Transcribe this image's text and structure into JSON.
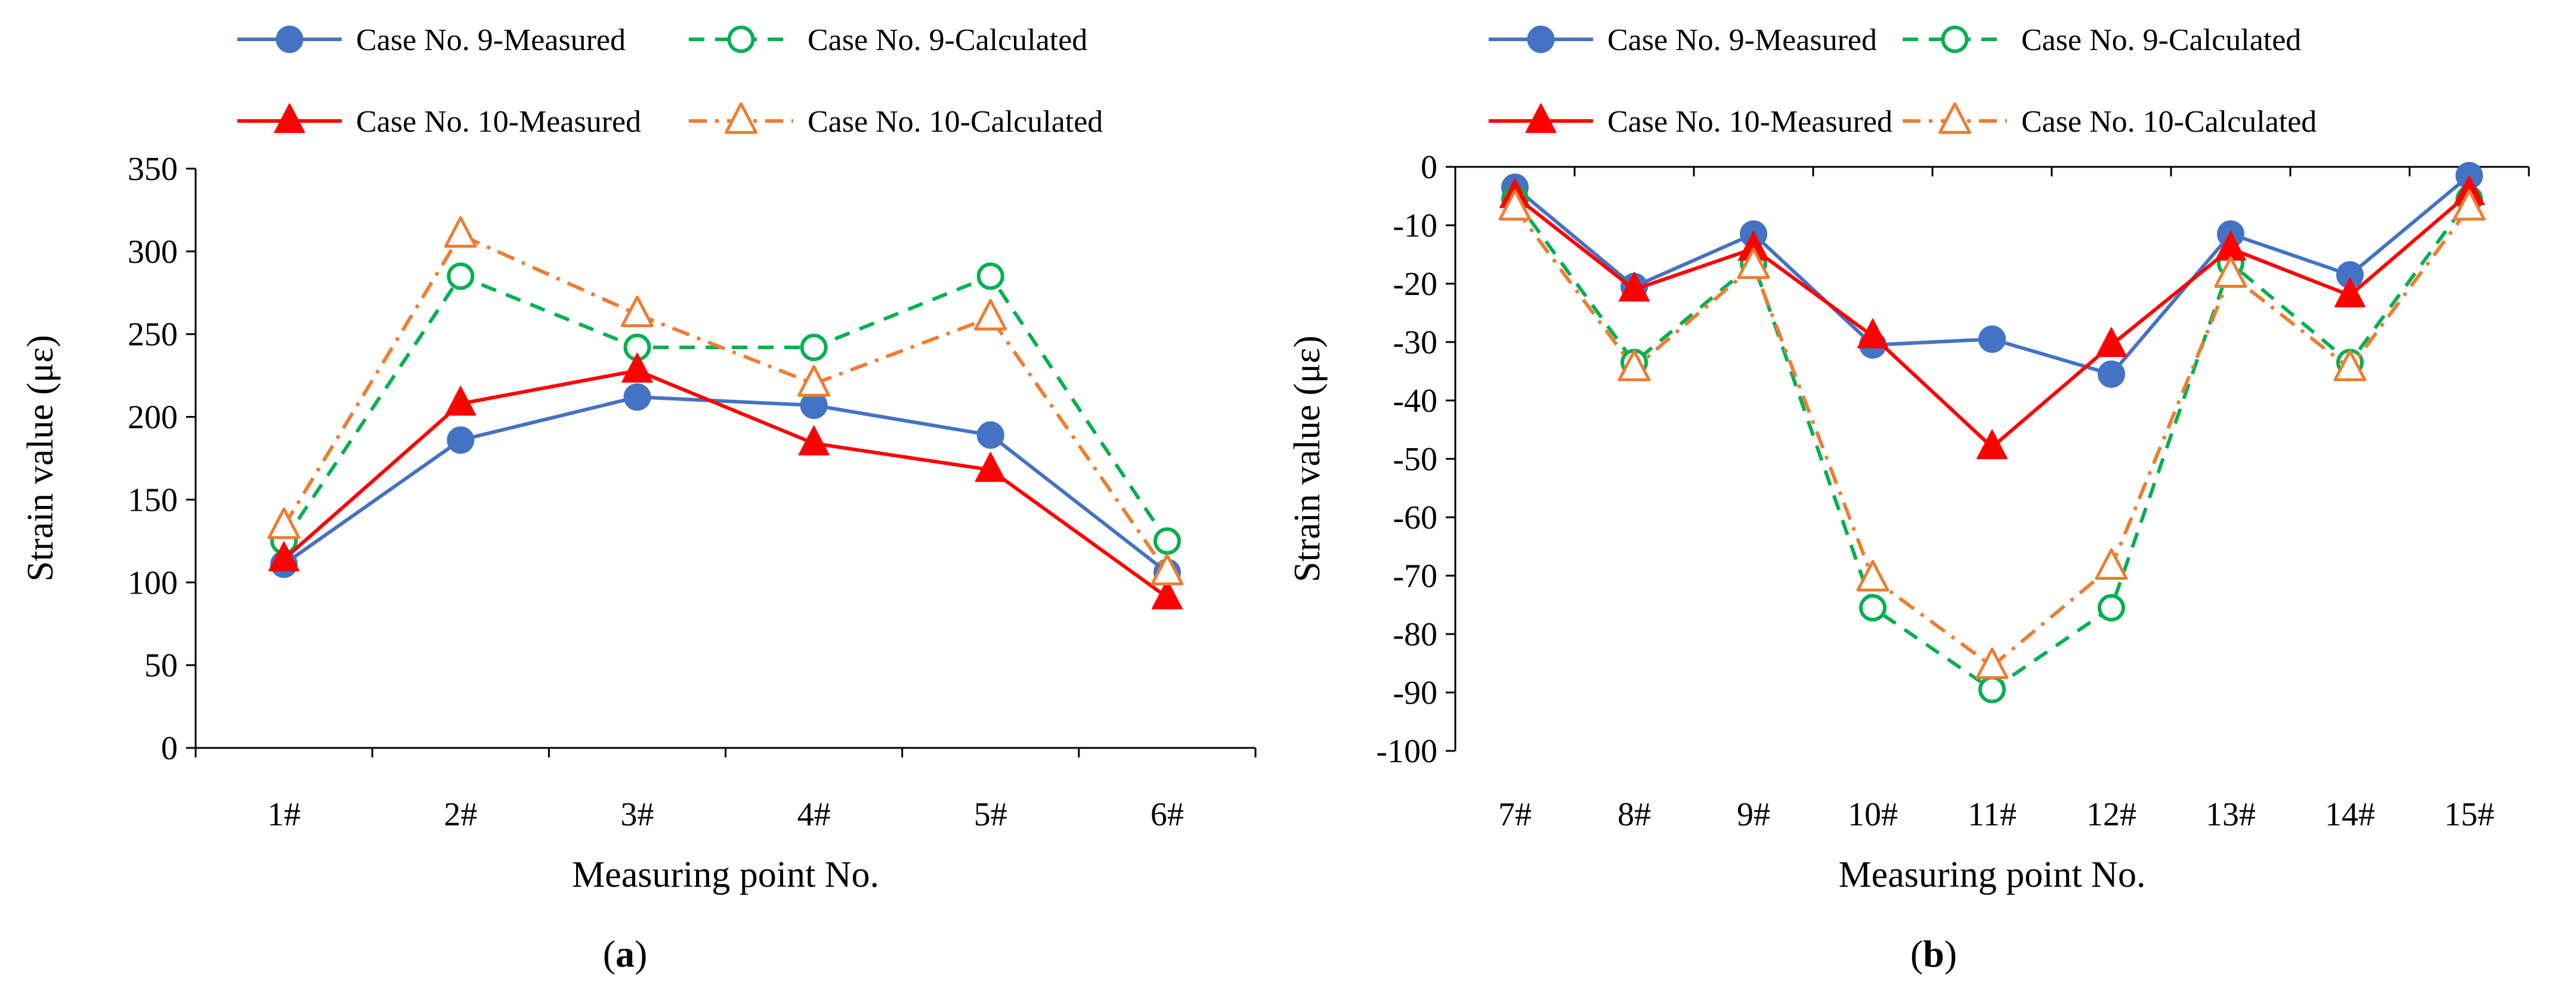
{
  "chart_data": [
    {
      "type": "line",
      "caption": "(a)",
      "caption_letter": "a",
      "xlabel": "Measuring point No.",
      "ylabel": "Strain value (με)",
      "categories": [
        "1#",
        "2#",
        "3#",
        "4#",
        "5#",
        "6#"
      ],
      "ylim": [
        0,
        350
      ],
      "yticks": [
        0,
        50,
        100,
        150,
        200,
        250,
        300,
        350
      ],
      "legend_position": "top",
      "grid": false,
      "series": [
        {
          "name": "Case No. 9-Measured",
          "values": [
            111,
            186,
            212,
            207,
            189,
            106
          ],
          "color": "#4472C4",
          "marker": "circle-filled",
          "dash": "solid"
        },
        {
          "name": "Case No. 9-Calculated",
          "values": [
            125,
            285,
            242,
            242,
            285,
            125
          ],
          "color": "#00B050",
          "marker": "circle-open",
          "dash": "dashed"
        },
        {
          "name": "Case No. 10-Measured",
          "values": [
            114,
            208,
            228,
            184,
            168,
            91
          ],
          "color": "#FF0000",
          "marker": "triangle-filled",
          "dash": "solid"
        },
        {
          "name": "Case No. 10-Calculated",
          "values": [
            134,
            310,
            262,
            220,
            260,
            106
          ],
          "color": "#ED7D31",
          "marker": "triangle-open",
          "dash": "dashdot"
        }
      ]
    },
    {
      "type": "line",
      "caption": "(b)",
      "caption_letter": "b",
      "xlabel": "Measuring point No.",
      "ylabel": "Strain value (με)",
      "categories": [
        "7#",
        "8#",
        "9#",
        "10#",
        "11#",
        "12#",
        "13#",
        "14#",
        "15#"
      ],
      "ylim": [
        -100,
        0
      ],
      "yticks": [
        0,
        -10,
        -20,
        -30,
        -40,
        -50,
        -60,
        -70,
        -80,
        -90,
        -100
      ],
      "legend_position": "top",
      "grid": false,
      "series": [
        {
          "name": "Case No. 9-Measured",
          "values": [
            -3.5,
            -20.5,
            -11.5,
            -30.5,
            -29.5,
            -35.5,
            -11.5,
            -18.5,
            -1.5
          ],
          "color": "#4472C4",
          "marker": "circle-filled",
          "dash": "solid"
        },
        {
          "name": "Case No. 9-Calculated",
          "values": [
            -5.5,
            -33.5,
            -16.5,
            -75.5,
            -89.5,
            -75.5,
            -16.5,
            -33.5,
            -5.5
          ],
          "color": "#00B050",
          "marker": "circle-open",
          "dash": "dashed"
        },
        {
          "name": "Case No. 10-Measured",
          "values": [
            -5,
            -21,
            -14,
            -29,
            -48,
            -30.5,
            -14,
            -22,
            -4.5
          ],
          "color": "#FF0000",
          "marker": "triangle-filled",
          "dash": "solid"
        },
        {
          "name": "Case No. 10-Calculated",
          "values": [
            -7,
            -34.5,
            -17,
            -70.5,
            -85.5,
            -68.5,
            -18.5,
            -34.5,
            -7
          ],
          "color": "#ED7D31",
          "marker": "triangle-open",
          "dash": "dashdot"
        }
      ]
    }
  ]
}
